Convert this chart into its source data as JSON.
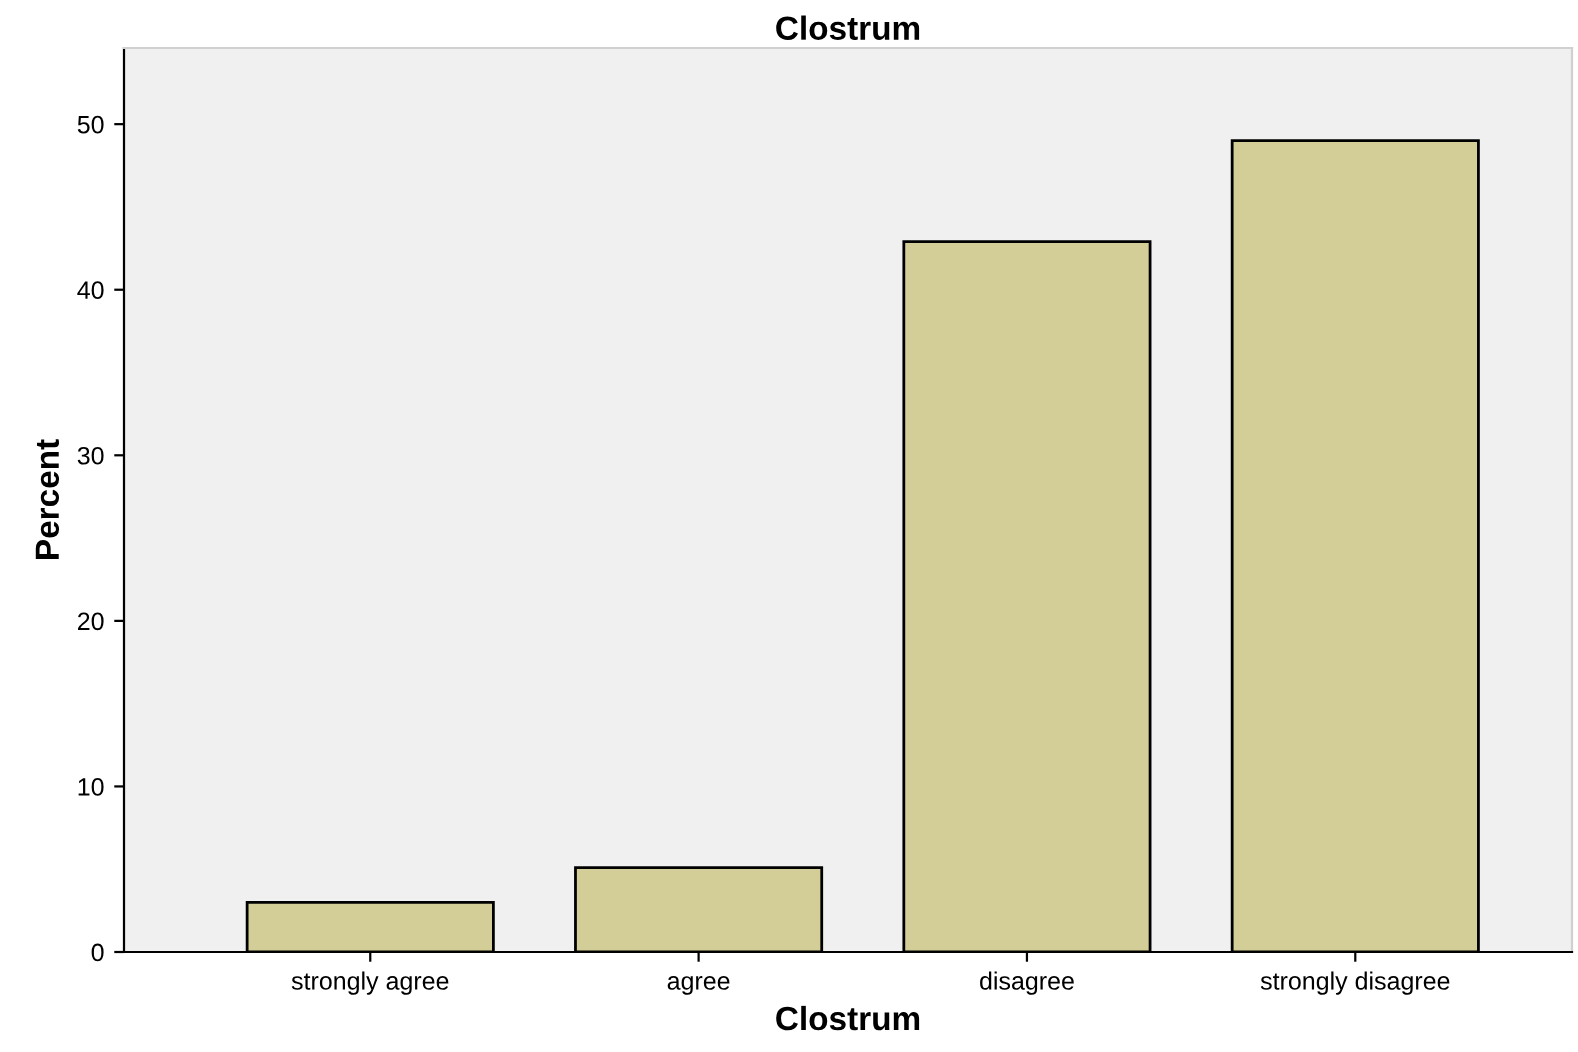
{
  "chart_data": {
    "type": "bar",
    "title": "Clostrum",
    "xlabel": "Clostrum",
    "ylabel": "Percent",
    "categories": [
      "strongly agree",
      "agree",
      "disagree",
      "strongly disagree"
    ],
    "values": [
      3.0,
      5.1,
      42.9,
      49.0
    ],
    "color": "#d3ce97",
    "ylim": [
      0,
      54.6
    ],
    "yticks": [
      0,
      10,
      20,
      30,
      40,
      50
    ],
    "grid": false,
    "legend": false
  }
}
